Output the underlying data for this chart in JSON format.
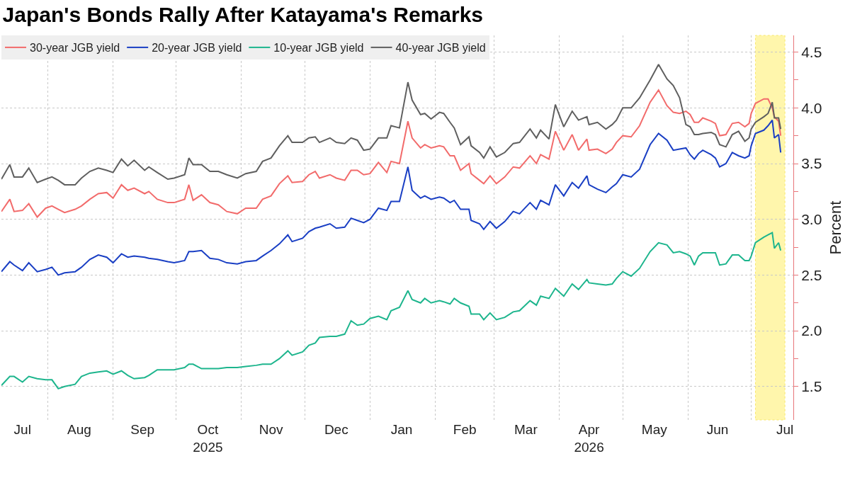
{
  "chart_data": {
    "type": "line",
    "title": "Japan's Bonds Rally After Katayama's Remarks",
    "ylabel": "Percent",
    "x": [
      "2025-07-10",
      "2025-07-14",
      "2025-07-16",
      "2025-07-20",
      "2025-07-23",
      "2025-07-27",
      "2025-07-31",
      "2025-08-03",
      "2025-08-06",
      "2025-08-09",
      "2025-08-14",
      "2025-08-17",
      "2025-08-21",
      "2025-08-25",
      "2025-08-29",
      "2025-09-01",
      "2025-09-05",
      "2025-09-08",
      "2025-09-11",
      "2025-09-16",
      "2025-09-18",
      "2025-09-22",
      "2025-09-27",
      "2025-09-30",
      "2025-10-05",
      "2025-10-07",
      "2025-10-09",
      "2025-10-13",
      "2025-10-17",
      "2025-10-21",
      "2025-10-25",
      "2025-10-30",
      "2025-11-03",
      "2025-11-08",
      "2025-11-11",
      "2025-11-15",
      "2025-11-19",
      "2025-11-23",
      "2025-11-25",
      "2025-11-30",
      "2025-12-03",
      "2025-12-06",
      "2025-12-08",
      "2025-12-13",
      "2025-12-16",
      "2025-12-20",
      "2025-12-23",
      "2025-12-26",
      "2025-12-29",
      "2026-01-01",
      "2026-01-05",
      "2026-01-09",
      "2026-01-11",
      "2026-01-15",
      "2026-01-19",
      "2026-01-21",
      "2026-01-25",
      "2026-01-27",
      "2026-01-30",
      "2026-02-03",
      "2026-02-05",
      "2026-02-08",
      "2026-02-10",
      "2026-02-13",
      "2026-02-17",
      "2026-02-18",
      "2026-02-22",
      "2026-02-24",
      "2026-02-27",
      "2026-03-02",
      "2026-03-06",
      "2026-03-10",
      "2026-03-13",
      "2026-03-18",
      "2026-03-21",
      "2026-03-23",
      "2026-03-27",
      "2026-03-30",
      "2026-04-03",
      "2026-04-07",
      "2026-04-10",
      "2026-04-14",
      "2026-04-15",
      "2026-04-19",
      "2026-04-23",
      "2026-04-26",
      "2026-04-28",
      "2026-05-01",
      "2026-05-05",
      "2026-05-09",
      "2026-05-14",
      "2026-05-18",
      "2026-05-22",
      "2026-05-25",
      "2026-05-28",
      "2026-05-31",
      "2026-06-02",
      "2026-06-04",
      "2026-06-06",
      "2026-06-08",
      "2026-06-12",
      "2026-06-14",
      "2026-06-16",
      "2026-06-19",
      "2026-06-22",
      "2026-06-25",
      "2026-06-28",
      "2026-06-30",
      "2026-07-01",
      "2026-07-03",
      "2026-07-07",
      "2026-07-09",
      "2026-07-11",
      "2026-07-12",
      "2026-07-14",
      "2026-07-15"
    ],
    "series": [
      {
        "name": "30-year JGB yield",
        "color": "#f26b6b",
        "values": [
          3.07,
          3.18,
          3.07,
          3.08,
          3.14,
          3.02,
          3.1,
          3.12,
          3.09,
          3.06,
          3.09,
          3.12,
          3.18,
          3.23,
          3.24,
          3.19,
          3.31,
          3.26,
          3.28,
          3.23,
          3.25,
          3.18,
          3.15,
          3.15,
          3.18,
          3.31,
          3.17,
          3.22,
          3.15,
          3.13,
          3.07,
          3.05,
          3.1,
          3.1,
          3.18,
          3.21,
          3.32,
          3.39,
          3.33,
          3.34,
          3.4,
          3.43,
          3.37,
          3.4,
          3.37,
          3.35,
          3.44,
          3.44,
          3.4,
          3.41,
          3.51,
          3.42,
          3.52,
          3.5,
          3.88,
          3.73,
          3.64,
          3.67,
          3.64,
          3.66,
          3.65,
          3.57,
          3.57,
          3.44,
          3.5,
          3.41,
          3.35,
          3.32,
          3.39,
          3.32,
          3.38,
          3.47,
          3.46,
          3.57,
          3.5,
          3.58,
          3.54,
          3.79,
          3.62,
          3.76,
          3.62,
          3.72,
          3.62,
          3.63,
          3.59,
          3.63,
          3.69,
          3.75,
          3.74,
          3.84,
          4.05,
          4.16,
          4.02,
          3.96,
          3.95,
          3.97,
          3.94,
          3.87,
          3.87,
          3.91,
          3.88,
          3.86,
          3.75,
          3.76,
          3.86,
          3.87,
          3.83,
          3.86,
          3.95,
          4.04,
          4.08,
          4.08,
          4.0,
          3.92,
          3.88,
          3.75
        ]
      },
      {
        "name": "20-year JGB yield",
        "color": "#1a3fc4",
        "values": [
          2.53,
          2.62,
          2.59,
          2.54,
          2.61,
          2.53,
          2.55,
          2.57,
          2.5,
          2.52,
          2.53,
          2.57,
          2.64,
          2.68,
          2.66,
          2.61,
          2.69,
          2.66,
          2.67,
          2.66,
          2.65,
          2.64,
          2.62,
          2.61,
          2.63,
          2.71,
          2.71,
          2.72,
          2.65,
          2.64,
          2.61,
          2.6,
          2.62,
          2.63,
          2.67,
          2.72,
          2.78,
          2.86,
          2.8,
          2.83,
          2.89,
          2.92,
          2.93,
          2.96,
          2.92,
          2.93,
          3.01,
          2.99,
          2.97,
          3.0,
          3.1,
          3.08,
          3.16,
          3.16,
          3.47,
          3.26,
          3.19,
          3.21,
          3.18,
          3.2,
          3.19,
          3.15,
          3.17,
          3.09,
          3.09,
          2.99,
          2.96,
          2.91,
          2.98,
          2.92,
          2.98,
          3.07,
          3.05,
          3.15,
          3.09,
          3.17,
          3.13,
          3.31,
          3.21,
          3.33,
          3.28,
          3.39,
          3.31,
          3.27,
          3.24,
          3.29,
          3.32,
          3.4,
          3.38,
          3.45,
          3.67,
          3.77,
          3.71,
          3.62,
          3.63,
          3.64,
          3.58,
          3.54,
          3.59,
          3.62,
          3.58,
          3.55,
          3.47,
          3.5,
          3.6,
          3.57,
          3.55,
          3.57,
          3.66,
          3.77,
          3.8,
          3.84,
          3.89,
          3.73,
          3.76,
          3.6
        ]
      },
      {
        "name": "10-year JGB yield",
        "color": "#1db58d",
        "values": [
          1.51,
          1.59,
          1.59,
          1.54,
          1.59,
          1.57,
          1.56,
          1.56,
          1.48,
          1.5,
          1.52,
          1.59,
          1.62,
          1.63,
          1.64,
          1.61,
          1.64,
          1.6,
          1.57,
          1.58,
          1.6,
          1.65,
          1.65,
          1.65,
          1.67,
          1.7,
          1.7,
          1.66,
          1.66,
          1.66,
          1.67,
          1.67,
          1.68,
          1.69,
          1.7,
          1.7,
          1.75,
          1.82,
          1.78,
          1.81,
          1.87,
          1.89,
          1.94,
          1.95,
          1.95,
          1.97,
          2.09,
          2.05,
          2.06,
          2.11,
          2.13,
          2.1,
          2.18,
          2.21,
          2.36,
          2.28,
          2.25,
          2.29,
          2.25,
          2.27,
          2.26,
          2.24,
          2.29,
          2.25,
          2.22,
          2.15,
          2.15,
          2.1,
          2.16,
          2.1,
          2.12,
          2.17,
          2.18,
          2.27,
          2.23,
          2.31,
          2.29,
          2.38,
          2.31,
          2.42,
          2.37,
          2.46,
          2.43,
          2.42,
          2.41,
          2.42,
          2.47,
          2.53,
          2.49,
          2.56,
          2.71,
          2.79,
          2.77,
          2.7,
          2.71,
          2.69,
          2.67,
          2.59,
          2.67,
          2.7,
          2.7,
          2.7,
          2.59,
          2.6,
          2.68,
          2.68,
          2.63,
          2.63,
          2.67,
          2.79,
          2.84,
          2.86,
          2.88,
          2.74,
          2.79,
          2.72
        ]
      },
      {
        "name": "40-year JGB yield",
        "color": "#5f5f5f",
        "values": [
          3.36,
          3.49,
          3.38,
          3.38,
          3.46,
          3.33,
          3.36,
          3.38,
          3.35,
          3.31,
          3.31,
          3.37,
          3.43,
          3.46,
          3.44,
          3.42,
          3.54,
          3.48,
          3.53,
          3.44,
          3.47,
          3.42,
          3.36,
          3.37,
          3.4,
          3.55,
          3.49,
          3.49,
          3.43,
          3.43,
          3.4,
          3.37,
          3.41,
          3.43,
          3.52,
          3.55,
          3.66,
          3.75,
          3.69,
          3.69,
          3.73,
          3.74,
          3.69,
          3.73,
          3.69,
          3.68,
          3.73,
          3.71,
          3.62,
          3.63,
          3.73,
          3.73,
          3.84,
          3.82,
          4.23,
          4.07,
          3.94,
          3.95,
          3.9,
          3.96,
          3.95,
          3.87,
          3.82,
          3.67,
          3.74,
          3.66,
          3.6,
          3.55,
          3.65,
          3.56,
          3.6,
          3.68,
          3.69,
          3.81,
          3.73,
          3.8,
          3.72,
          4.03,
          3.83,
          3.97,
          3.89,
          3.92,
          3.85,
          3.87,
          3.81,
          3.85,
          3.89,
          4.0,
          4.0,
          4.09,
          4.25,
          4.39,
          4.26,
          4.2,
          4.09,
          3.85,
          3.83,
          3.76,
          3.76,
          3.77,
          3.78,
          3.76,
          3.67,
          3.65,
          3.76,
          3.79,
          3.7,
          3.73,
          3.81,
          3.87,
          3.92,
          3.95,
          4.05,
          3.91,
          3.91,
          3.81
        ]
      }
    ],
    "xlim": [
      "2025-07-10",
      "2026-07-21"
    ],
    "xticks": [
      {
        "value": "2025-07-20",
        "label": "Jul"
      },
      {
        "value": "2025-08-01",
        "label": null
      },
      {
        "value": "2025-08-16",
        "label": "Aug"
      },
      {
        "value": "2025-09-01",
        "label": null
      },
      {
        "value": "2025-09-15",
        "label": "Sep"
      },
      {
        "value": "2025-10-01",
        "label": null
      },
      {
        "value": "2025-10-16",
        "label": "Oct\n2025"
      },
      {
        "value": "2025-11-01",
        "label": null
      },
      {
        "value": "2025-11-15",
        "label": "Nov"
      },
      {
        "value": "2025-12-01",
        "label": null
      },
      {
        "value": "2025-12-16",
        "label": "Dec"
      },
      {
        "value": "2026-01-01",
        "label": null
      },
      {
        "value": "2026-01-16",
        "label": "Jan"
      },
      {
        "value": "2026-02-01",
        "label": null
      },
      {
        "value": "2026-02-15",
        "label": "Feb"
      },
      {
        "value": "2026-03-01",
        "label": null
      },
      {
        "value": "2026-03-16",
        "label": "Mar"
      },
      {
        "value": "2026-04-01",
        "label": null
      },
      {
        "value": "2026-04-15",
        "label": "Apr\n2026"
      },
      {
        "value": "2026-05-01",
        "label": null
      },
      {
        "value": "2026-05-16",
        "label": "May"
      },
      {
        "value": "2026-06-01",
        "label": null
      },
      {
        "value": "2026-06-15",
        "label": "Jun"
      },
      {
        "value": "2026-07-01",
        "label": null
      },
      {
        "value": "2026-07-17",
        "label": "Jul"
      }
    ],
    "ylim": [
      1.2,
      4.65
    ],
    "yticks": [
      1.5,
      {
        "value": 1.75,
        "label": null
      },
      {
        "value": 2,
        "label": "2.0"
      },
      {
        "value": 2.25,
        "label": null
      },
      2.5,
      {
        "value": 2.75,
        "label": null
      },
      {
        "value": 3,
        "label": "3.0"
      },
      {
        "value": 3.25,
        "label": null
      },
      3.5,
      {
        "value": 3.75,
        "label": null
      },
      {
        "value": 4,
        "label": "4.0"
      },
      {
        "value": 4.25,
        "label": null
      },
      4.5
    ],
    "bands": [
      {
        "axis": "x",
        "from": "2026-07-03",
        "to": "2026-07-17",
        "color": "#fff176"
      }
    ],
    "grid": true,
    "legend": "top left",
    "marker": "none",
    "line_style": "solid"
  }
}
